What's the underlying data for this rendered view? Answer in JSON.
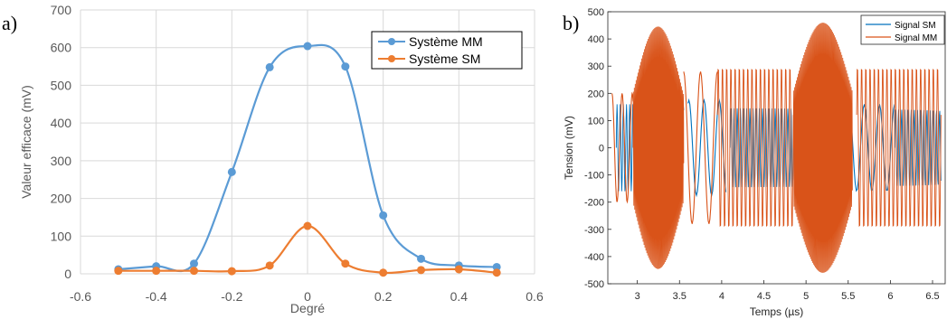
{
  "chart_data": [
    {
      "id": "a",
      "panel_label": "a)",
      "type": "line",
      "xlabel": "Degré",
      "ylabel": "Valeur efficace (mV)",
      "xlim": [
        -0.6,
        0.6
      ],
      "ylim": [
        0,
        700
      ],
      "x_ticks": [
        "-0.6",
        "-0.4",
        "-0.2",
        "0",
        "0.2",
        "0.4",
        "0.6"
      ],
      "y_ticks": [
        "0",
        "100",
        "200",
        "300",
        "400",
        "500",
        "600",
        "700"
      ],
      "grid": true,
      "legend_position": "top-right",
      "series": [
        {
          "name": "Système MM",
          "color": "#5B9BD5",
          "x": [
            -0.5,
            -0.4,
            -0.3,
            -0.2,
            -0.1,
            0,
            0.1,
            0.2,
            0.3,
            0.4,
            0.5
          ],
          "y": [
            12,
            20,
            27,
            270,
            548,
            604,
            550,
            155,
            40,
            22,
            18
          ]
        },
        {
          "name": "Système SM",
          "color": "#ED7D31",
          "x": [
            -0.5,
            -0.4,
            -0.3,
            -0.2,
            -0.1,
            0,
            0.1,
            0.2,
            0.3,
            0.4,
            0.5
          ],
          "y": [
            8,
            8,
            8,
            7,
            22,
            127,
            27,
            3,
            10,
            12,
            3
          ]
        }
      ]
    },
    {
      "id": "b",
      "panel_label": "b)",
      "type": "line",
      "xlabel": "Temps (µs)",
      "ylabel": "Tension (mV)",
      "xlim": [
        2.65,
        6.65
      ],
      "ylim": [
        -500,
        500
      ],
      "x_ticks": [
        "3",
        "3.5",
        "4",
        "4.5",
        "5",
        "5.5",
        "6",
        "6.5"
      ],
      "y_ticks": [
        "-500",
        "-400",
        "-300",
        "-200",
        "-100",
        "0",
        "100",
        "200",
        "300",
        "400",
        "500"
      ],
      "grid": false,
      "legend_position": "top-right",
      "series": [
        {
          "name": "Signal SM",
          "color": "#0072BD",
          "bursts": [
            {
              "x_range": [
                2.75,
                3.55
              ],
              "amplitude": 160
            },
            {
              "x_range": [
                4.1,
                5.5
              ],
              "amplitude": 145
            },
            {
              "x_range": [
                6.05,
                6.6
              ],
              "amplitude": 140
            }
          ],
          "slow_segments": [
            {
              "x_range": [
                3.6,
                4.05
              ],
              "amplitude": 175
            },
            {
              "x_range": [
                5.5,
                6.05
              ],
              "amplitude": 160
            }
          ]
        },
        {
          "name": "Signal MM",
          "color": "#D95319",
          "bursts": [
            {
              "x_range": [
                2.95,
                3.55
              ],
              "peak_amplitude": 450
            },
            {
              "x_range": [
                4.85,
                5.55
              ],
              "peak_amplitude": 460
            }
          ],
          "steady_segments": [
            {
              "x_range": [
                3.95,
                4.85
              ],
              "amplitude": 310
            },
            {
              "x_range": [
                5.6,
                6.6
              ],
              "amplitude": 310
            }
          ],
          "slow_segments": [
            {
              "x_range": [
                2.7,
                2.95
              ],
              "amplitude": 200
            },
            {
              "x_range": [
                3.55,
                3.95
              ],
              "amplitude": 280
            }
          ]
        }
      ]
    }
  ]
}
